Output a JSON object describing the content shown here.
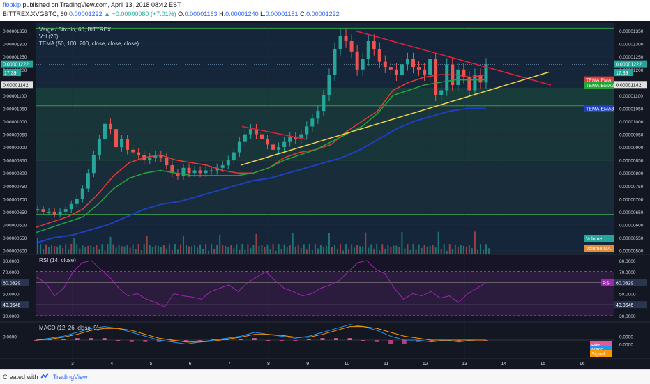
{
  "header": {
    "author": "flopkip",
    "published": "published on TradingView.com, April 13, 2018 08:42 EST",
    "symbol": "BITTREX:XVGBTC, 60",
    "last": "0.00001222",
    "change": "+0.00000080 (+7.01%)",
    "change_arrow": "▲",
    "ohlc": [
      {
        "k": "O:",
        "v": "0.00001163"
      },
      {
        "k": "H:",
        "v": "0.00001240"
      },
      {
        "k": "L:",
        "v": "0.00001151"
      },
      {
        "k": "C:",
        "v": "0.00001222"
      }
    ]
  },
  "footer": {
    "created": "Created with",
    "brand": "TradingView"
  },
  "colors": {
    "bg": "#131722",
    "up": "#26a69a",
    "down": "#ef5350",
    "ema1": "#e53935",
    "ema2": "#26a33a",
    "ema3": "#1e40c0",
    "rsi": "#9c27b0",
    "macd": "#2196f3",
    "signal": "#ff9800",
    "trend_red": "#e0213a",
    "trend_yellow": "#f2d04a"
  },
  "chart_data": [
    {
      "type": "candlestick",
      "title": "Verge / Bitcoin, 60, BITTREX",
      "indicators": [
        "Vol (20)",
        "TEMA (50, 100, 200, close, close, close)"
      ],
      "ylim": [
        4.88e-06,
        1.38e-05
      ],
      "y_ticks": [
        "0.00001350",
        "0.00001300",
        "0.00001250",
        "0.00001200",
        "0.00001150",
        "0.00001100",
        "0.00001050",
        "0.00001000",
        "0.00000950",
        "0.00000900",
        "0.00000850",
        "0.00000800",
        "0.00000750",
        "0.00000700",
        "0.00000650",
        "0.00000600",
        "0.00000550",
        "0.00000500"
      ],
      "x_ticks": [
        "3",
        "4",
        "5",
        "6",
        "7",
        "8",
        "9",
        "10",
        "11",
        "12",
        "13",
        "14",
        "15",
        "16"
      ],
      "path_close": [
        6.6e-06,
        6.5e-06,
        6.5e-06,
        6.4e-06,
        6.5e-06,
        6.6e-06,
        6.8e-06,
        7e-06,
        7.4e-06,
        8e-06,
        8.7e-06,
        9.3e-06,
        9.9e-06,
        9.7e-06,
        9e-06,
        9.3e-06,
        8.9e-06,
        8.8e-06,
        8.7e-06,
        8.5e-06,
        8.6e-06,
        8.7e-06,
        8.6e-06,
        8.3e-06,
        8e-06,
        7.9e-06,
        8.2e-06,
        8e-06,
        8.1e-06,
        8e-06,
        8.1e-06,
        8.1e-06,
        8.2e-06,
        8.3e-06,
        8.5e-06,
        8.8e-06,
        9.2e-06,
        9.5e-06,
        9.7e-06,
        9.5e-06,
        9.3e-06,
        9.1e-06,
        8.9e-06,
        9e-06,
        9.2e-06,
        9.4e-06,
        9.3e-06,
        9.5e-06,
        9.8e-06,
        1.01e-05,
        1.04e-05,
        1.1e-05,
        1.18e-05,
        1.28e-05,
        1.33e-05,
        1.31e-05,
        1.27e-05,
        1.2e-05,
        1.24e-05,
        1.31e-05,
        1.28e-05,
        1.23e-05,
        1.21e-05,
        1.2e-05,
        1.18e-05,
        1.22e-05,
        1.24e-05,
        1.21e-05,
        1.2e-05,
        1.18e-05,
        1.24e-05,
        1.1e-05,
        1.12e-05,
        1.22e-05,
        1.14e-05,
        1.2e-05,
        1.17e-05,
        1.12e-05,
        1.18e-05,
        1.15e-05,
        1.22e-05
      ],
      "tema50_close": [
        5.9e-06,
        6.1e-06,
        6.3e-06,
        6.6e-06,
        7.2e-06,
        7.9e-06,
        8.4e-06,
        8.6e-06,
        8.7e-06,
        8.5e-06,
        8.4e-06,
        8.3e-06,
        8.1e-06,
        8e-06,
        8e-06,
        8.2e-06,
        8.6e-06,
        8.8e-06,
        8.9e-06,
        9.1e-06,
        9.6e-06,
        1e-05,
        1.04e-05,
        1.12e-05,
        1.15e-05,
        1.17e-05,
        1.18e-05,
        1.18e-05,
        1.17e-05,
        1.18e-05
      ],
      "tema100_close": [
        5.7e-06,
        5.9e-06,
        6.1e-06,
        6.3e-06,
        6.8e-06,
        7.4e-06,
        7.8e-06,
        8e-06,
        8.1e-06,
        8e-06,
        7.9e-06,
        7.9e-06,
        7.9e-06,
        7.9e-06,
        8e-06,
        8.2e-06,
        8.5e-06,
        8.7e-06,
        8.9e-06,
        9.2e-06,
        9.5e-06,
        9.8e-06,
        1.03e-05,
        1.1e-05,
        1.12e-05,
        1.14e-05,
        1.15e-05,
        1.16e-05,
        1.16e-05,
        1.16e-05
      ],
      "tema200_close": [
        5.3e-06,
        5.5e-06,
        5.6e-06,
        5.8e-06,
        6e-06,
        6.3e-06,
        6.6e-06,
        6.8e-06,
        6.9e-06,
        7.1e-06,
        7.3e-06,
        7.5e-06,
        7.7e-06,
        7.8e-06,
        8e-06,
        8.2e-06,
        8.4e-06,
        8.6e-06,
        8.9e-06,
        9.3e-06,
        9.7e-06,
        1e-05,
        1.02e-05,
        1.04e-05,
        1.05e-05,
        1.05e-05
      ],
      "labels": [
        {
          "text": "TEMA:EMA",
          "value": 1.16e-05
        },
        {
          "text": "TEMA:EMA2",
          "value": 1.14e-05
        },
        {
          "text": "TEMA:EMA3",
          "value": 1.05e-05
        },
        {
          "text": "0.00001222",
          "value": 1.222e-05
        },
        {
          "text": "0.00001142",
          "value": 1.142e-05
        },
        {
          "text": "17:39",
          "value": 1.21e-05
        }
      ],
      "volume_legend": [
        "Volume",
        "Volume MA"
      ]
    },
    {
      "type": "line",
      "title": "RSI (14, close)",
      "ylim": [
        25,
        85
      ],
      "y_ticks": [
        "80.0000",
        "70.0000",
        "50.0000",
        "40.0000",
        "30.0000"
      ],
      "current": "60.0329",
      "level": "40.0646",
      "series_label": "RSI",
      "values": [
        65,
        60,
        48,
        55,
        70,
        78,
        80,
        72,
        65,
        55,
        48,
        50,
        45,
        42,
        38,
        50,
        48,
        47,
        45,
        52,
        55,
        58,
        52,
        60,
        65,
        70,
        62,
        55,
        52,
        48,
        50,
        55,
        58,
        62,
        70,
        78,
        80,
        72,
        68,
        55,
        45,
        50,
        48,
        52,
        46,
        48,
        42,
        50,
        55,
        60
      ]
    },
    {
      "type": "line",
      "title": "MACD (12, 26, close, 9)",
      "ylim": [
        -9e-07,
        9e-07
      ],
      "y_ticks": [
        "0.0000",
        "0.0000"
      ],
      "series": [
        {
          "name": "MACD",
          "values": [
            0,
            1e-07,
            2e-07,
            4e-07,
            6e-07,
            7e-07,
            6e-07,
            4e-07,
            2e-07,
            0,
            -1e-07,
            -2e-07,
            -1e-07,
            0,
            1e-07,
            2e-07,
            4e-07,
            3e-07,
            2e-07,
            1e-07,
            2e-07,
            4e-07,
            6e-07,
            8e-07,
            7e-07,
            5e-07,
            2e-07,
            0,
            0,
            -1e-07,
            0,
            -1e-07,
            0,
            0
          ]
        },
        {
          "name": "Signal",
          "values": [
            0,
            5e-08,
            1.5e-07,
            3e-07,
            5e-07,
            6e-07,
            6e-07,
            5e-07,
            3e-07,
            1e-07,
            0,
            -1e-07,
            -1e-07,
            -5e-08,
            5e-08,
            1.5e-07,
            3e-07,
            3e-07,
            2.5e-07,
            1.5e-07,
            1.5e-07,
            3e-07,
            5e-07,
            7e-07,
            7e-07,
            6e-07,
            4e-07,
            2e-07,
            1e-07,
            0,
            0,
            0,
            0,
            0
          ]
        }
      ],
      "legend": [
        "Hist",
        "Macd",
        "Signal"
      ]
    }
  ]
}
